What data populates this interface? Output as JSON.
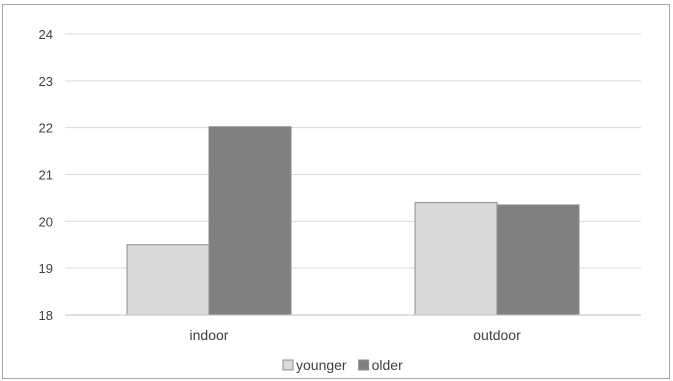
{
  "chart_data": {
    "type": "bar",
    "title": "",
    "xlabel": "",
    "ylabel": "",
    "categories": [
      "indoor",
      "outdoor"
    ],
    "series": [
      {
        "name": "younger",
        "values": [
          19.5,
          20.4
        ],
        "color": "#d9d9d9"
      },
      {
        "name": "older",
        "values": [
          22.02,
          20.35
        ],
        "color": "#808080"
      }
    ],
    "ylim": [
      18,
      24
    ],
    "yticks": [
      18,
      19,
      20,
      21,
      22,
      23,
      24
    ],
    "grid": true,
    "legend_position": "bottom",
    "gridline_color": "#d9d9d9",
    "axis_color": "#bfbfbf",
    "bar_outline_color": "#8c8c8c"
  }
}
